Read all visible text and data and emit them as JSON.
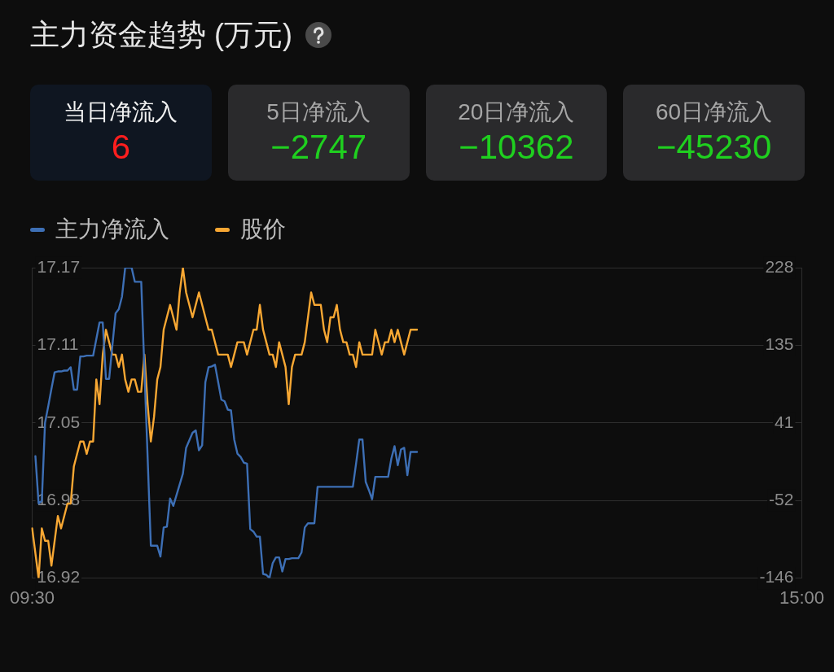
{
  "chart_data": [
    {
      "type": "other",
      "title": "主力资金趋势 (万元)",
      "categories": [
        "当日净流入",
        "5日净流入",
        "20日净流入",
        "60日净流入"
      ],
      "values": [
        6,
        -2747,
        -10362,
        -45230
      ],
      "colors": [
        "#0f1621",
        "#2a2a2c",
        "#2a2a2c",
        "#2a2a2c"
      ],
      "data_labels": true
    },
    {
      "type": "line",
      "legend": "top left",
      "grid": "y",
      "marker": "none",
      "categories": [
        "09:30",
        null,
        null,
        null,
        null,
        null,
        null,
        null,
        null,
        null,
        null,
        null,
        null,
        null,
        null,
        null,
        null,
        null,
        null,
        null,
        null,
        null,
        null,
        null,
        null,
        null,
        null,
        null,
        null,
        null,
        null,
        null,
        null,
        null,
        null,
        null,
        null,
        null,
        null,
        null,
        null,
        null,
        null,
        null,
        null,
        null,
        null,
        null,
        null,
        null,
        null,
        null,
        null,
        null,
        null,
        null,
        null,
        null,
        null,
        null,
        null,
        null,
        null,
        null,
        null,
        null,
        null,
        null,
        null,
        null,
        null,
        null,
        null,
        null,
        null,
        null,
        null,
        null,
        null,
        null,
        null,
        null,
        null,
        null,
        null,
        null,
        null,
        null,
        null,
        null,
        null,
        null,
        null,
        null,
        null,
        null,
        null,
        null,
        null,
        null,
        null,
        null,
        null,
        null,
        null,
        null,
        null,
        null,
        null,
        null,
        null,
        null,
        null,
        null,
        null,
        null,
        null,
        null,
        null,
        null,
        null,
        null,
        null,
        null,
        null,
        null,
        null,
        null,
        null,
        null,
        null,
        null,
        null,
        null,
        null,
        null,
        null,
        null,
        null,
        null,
        null,
        null,
        null,
        null,
        null,
        null,
        null,
        null,
        null,
        null,
        null,
        null,
        null,
        null,
        null,
        null,
        null,
        null,
        null,
        null,
        null,
        null,
        null,
        null,
        null,
        null,
        null,
        null,
        null,
        null,
        null,
        null,
        null,
        null,
        null,
        null,
        null,
        null,
        null,
        null,
        null,
        null,
        null,
        null,
        null,
        null,
        null,
        null,
        null,
        null,
        null,
        null,
        null,
        null,
        null,
        null,
        null,
        null,
        null,
        null,
        null,
        null,
        null,
        null,
        null,
        null,
        null,
        null,
        null,
        null,
        null,
        null,
        null,
        null,
        null,
        null,
        null,
        null,
        null,
        null,
        null,
        null,
        null,
        null,
        null,
        null,
        null,
        null,
        null,
        null,
        null,
        null,
        null,
        null,
        null,
        null,
        null,
        null,
        null,
        null,
        "15:00"
      ],
      "ylim": [
        16.92,
        17.17
      ],
      "yticks": [
        16.92,
        {
          "value": 16.9825,
          "label": "16.98"
        },
        {
          "value": 17.045,
          "label": "17.05"
        },
        {
          "value": 17.1075,
          "label": "17.11"
        },
        17.17
      ],
      "y2lim": [
        -146,
        228
      ],
      "y2ticks": [
        -146,
        {
          "value": -52.5,
          "label": "-52"
        },
        41,
        {
          "value": 134.5,
          "label": "135"
        },
        228
      ],
      "series": [
        {
          "name": "主力净流入",
          "color": "#3d6fb5",
          "axis": "y2",
          "values": [
            null,
            1,
            -56,
            -53,
            41,
            61,
            82,
            102,
            103,
            103,
            104,
            104,
            108,
            81,
            81,
            121,
            121,
            122,
            122,
            122,
            142,
            162,
            162,
            94,
            94,
            134,
            173,
            178,
            193,
            228,
            228,
            228,
            211,
            211,
            211,
            105,
            -1,
            -107,
            -107,
            -107,
            -120,
            -85,
            -84,
            -50,
            -59,
            -46,
            -33,
            -20,
            11,
            20,
            29,
            32,
            8,
            14,
            90,
            108,
            109,
            111,
            90,
            69,
            67,
            57,
            56,
            21,
            4,
            0,
            -7,
            -8,
            -87,
            -90,
            -96,
            -96,
            -141,
            -142,
            -146,
            -128,
            -121,
            -121,
            -138,
            -123,
            -123,
            -122,
            -122,
            -122,
            -115,
            -85,
            -80,
            -80,
            -80,
            -36,
            -36,
            -36,
            -36,
            -36,
            -36,
            -36,
            -36,
            -36,
            -36,
            -36,
            -36,
            -8,
            21,
            21,
            -30,
            -40,
            -51,
            -24,
            -24,
            -24,
            -24,
            -24,
            -2,
            13,
            -10,
            9,
            11,
            -22,
            6,
            6,
            6,
            null,
            null,
            null,
            null,
            null,
            null,
            null,
            null,
            null,
            null,
            null,
            null,
            null,
            null,
            null,
            null,
            null,
            null,
            null,
            null,
            null,
            null,
            null,
            null,
            null,
            null,
            null,
            null,
            null,
            null,
            null,
            null,
            null,
            null,
            null,
            null,
            null,
            null,
            null,
            null,
            null,
            null,
            null,
            null,
            null,
            null,
            null,
            null,
            null,
            null,
            null,
            null,
            null,
            null,
            null,
            null,
            null,
            null,
            null,
            null,
            null,
            null,
            null,
            null,
            null,
            null,
            null,
            null,
            null,
            null,
            null,
            null,
            null,
            null,
            null,
            null,
            null,
            null,
            null,
            null,
            null,
            null,
            null,
            null,
            null,
            null,
            null,
            null,
            null,
            null,
            null,
            null,
            null,
            null,
            null,
            null,
            null,
            null,
            null,
            null,
            null,
            null,
            null,
            null,
            null,
            null,
            null,
            null,
            null,
            null,
            null,
            null,
            null,
            null,
            null,
            null,
            null,
            null,
            null,
            null
          ]
        },
        {
          "name": "股价",
          "color": "#f7a733",
          "values": [
            16.96,
            16.94,
            16.92,
            16.96,
            16.95,
            16.95,
            16.93,
            16.95,
            16.97,
            16.96,
            16.97,
            16.98,
            16.98,
            17.01,
            17.02,
            17.03,
            17.03,
            17.02,
            17.03,
            17.03,
            17.08,
            17.06,
            17.1,
            17.12,
            17.11,
            17.1,
            17.1,
            17.09,
            17.1,
            17.08,
            17.07,
            17.08,
            17.08,
            17.07,
            17.07,
            17.1,
            17.06,
            17.03,
            17.05,
            17.08,
            17.09,
            17.12,
            17.13,
            17.14,
            17.13,
            17.12,
            17.15,
            17.17,
            17.15,
            17.14,
            17.13,
            17.14,
            17.15,
            17.14,
            17.13,
            17.12,
            17.12,
            17.11,
            17.1,
            17.1,
            17.1,
            17.1,
            17.09,
            17.1,
            17.11,
            17.11,
            17.11,
            17.1,
            17.11,
            17.12,
            17.12,
            17.14,
            17.12,
            17.11,
            17.1,
            17.1,
            17.09,
            17.11,
            17.1,
            17.09,
            17.06,
            17.09,
            17.1,
            17.1,
            17.1,
            17.11,
            17.13,
            17.15,
            17.14,
            17.14,
            17.14,
            17.12,
            17.11,
            17.13,
            17.13,
            17.14,
            17.12,
            17.11,
            17.11,
            17.1,
            17.1,
            17.09,
            17.11,
            17.1,
            17.1,
            17.1,
            17.1,
            17.12,
            17.11,
            17.1,
            17.11,
            17.11,
            17.12,
            17.11,
            17.12,
            17.11,
            17.1,
            17.11,
            17.12,
            17.12,
            17.12,
            null,
            null,
            null,
            null,
            null,
            null,
            null,
            null,
            null,
            null,
            null,
            null,
            null,
            null,
            null,
            null,
            null,
            null,
            null,
            null,
            null,
            null,
            null,
            null,
            null,
            null,
            null,
            null,
            null,
            null,
            null,
            null,
            null,
            null,
            null,
            null,
            null,
            null,
            null,
            null,
            null,
            null,
            null,
            null,
            null,
            null,
            null,
            null,
            null,
            null,
            null,
            null,
            null,
            null,
            null,
            null,
            null,
            null,
            null,
            null,
            null,
            null,
            null,
            null,
            null,
            null,
            null,
            null,
            null,
            null,
            null,
            null,
            null,
            null,
            null,
            null,
            null,
            null,
            null,
            null,
            null,
            null,
            null,
            null,
            null,
            null,
            null,
            null,
            null,
            null,
            null,
            null,
            null,
            null,
            null,
            null,
            null,
            null,
            null,
            null,
            null,
            null,
            null,
            null,
            null,
            null,
            null,
            null,
            null,
            null,
            null,
            null,
            null,
            null,
            null,
            null,
            null,
            null,
            null,
            null
          ]
        }
      ]
    }
  ]
}
